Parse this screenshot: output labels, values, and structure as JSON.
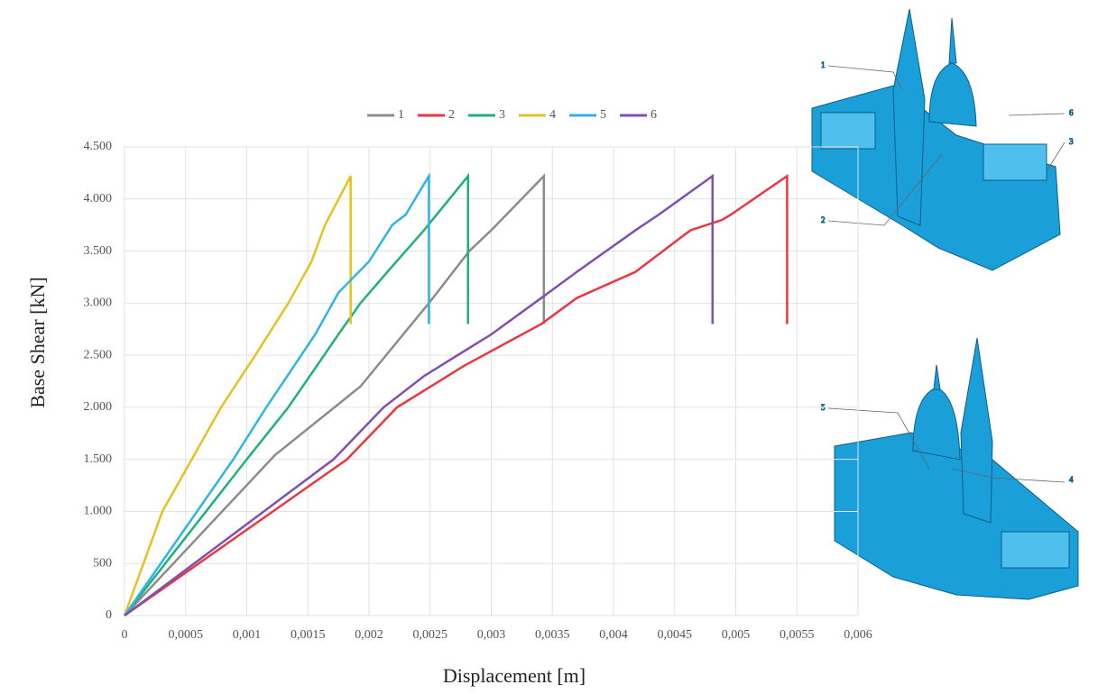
{
  "chart_data": {
    "type": "line",
    "x_label": "Displacement [m]",
    "y_label": "Base Shear [kN]",
    "xlim": [
      0,
      0.006
    ],
    "xticks": [
      0,
      {
        "value": 0.0005,
        "label": "0,0005"
      },
      {
        "value": 0.001,
        "label": "0,001"
      },
      {
        "value": 0.0015,
        "label": "0,0015"
      },
      {
        "value": 0.002,
        "label": "0,002"
      },
      {
        "value": 0.0025,
        "label": "0,0025"
      },
      {
        "value": 0.003,
        "label": "0,003"
      },
      {
        "value": 0.0035,
        "label": "0,0035"
      },
      {
        "value": 0.004,
        "label": "0,004"
      },
      {
        "value": 0.0045,
        "label": "0,0045"
      },
      {
        "value": 0.005,
        "label": "0,005"
      },
      {
        "value": 0.0055,
        "label": "0,0055"
      },
      {
        "value": 0.006,
        "label": "0,006"
      }
    ],
    "ylim": [
      0,
      4500
    ],
    "yticks": [
      0,
      500,
      {
        "value": 1000,
        "label": "1.000"
      },
      {
        "value": 1500,
        "label": "1.500"
      },
      {
        "value": 2000,
        "label": "2.000"
      },
      {
        "value": 2500,
        "label": "2.500"
      },
      {
        "value": 3000,
        "label": "3.000"
      },
      {
        "value": 3500,
        "label": "3.500"
      },
      {
        "value": 4000,
        "label": "4.000"
      },
      {
        "value": 4500,
        "label": "4.500"
      }
    ],
    "grid": true,
    "legend": "top",
    "series": [
      {
        "name": "1",
        "color": "#8c8c8c",
        "x": [
          0,
          0.00123,
          0.00193,
          0.00249,
          0.00282,
          0.003,
          0.00343,
          0.00343
        ],
        "values": [
          0,
          1540,
          2200,
          3000,
          3500,
          3700,
          4220,
          2800
        ]
      },
      {
        "name": "2",
        "color": "#e8373f",
        "x": [
          0,
          0.00182,
          0.00223,
          0.00278,
          0.00341,
          0.0037,
          0.00418,
          0.00463,
          0.00489,
          0.00496,
          0.00542,
          0.00542
        ],
        "values": [
          0,
          1500,
          2000,
          2400,
          2800,
          3050,
          3300,
          3700,
          3800,
          3850,
          4220,
          2800
        ]
      },
      {
        "name": "3",
        "color": "#20b07a",
        "x": [
          0,
          0.001,
          0.00134,
          0.00175,
          0.00193,
          0.00215,
          0.00245,
          0.00281,
          0.00281
        ],
        "values": [
          0,
          1500,
          2000,
          2700,
          3000,
          3300,
          3700,
          4220,
          2800
        ]
      },
      {
        "name": "4",
        "color": "#e8c020",
        "x": [
          0,
          0.00031,
          0.00079,
          0.00107,
          0.00134,
          0.00153,
          0.00164,
          0.00185,
          0.00185
        ],
        "values": [
          0,
          1000,
          2000,
          2500,
          3000,
          3400,
          3750,
          4220,
          2800
        ]
      },
      {
        "name": "5",
        "color": "#2eb4e6",
        "x": [
          0,
          0.00089,
          0.00116,
          0.00156,
          0.00175,
          0.002,
          0.00219,
          0.0023,
          0.00249,
          0.00249
        ],
        "values": [
          0,
          1500,
          2000,
          2700,
          3100,
          3400,
          3750,
          3850,
          4220,
          2800
        ]
      },
      {
        "name": "6",
        "color": "#8050b0",
        "x": [
          0,
          0.00171,
          0.00212,
          0.00245,
          0.003,
          0.00341,
          0.0037,
          0.00418,
          0.00437,
          0.00481,
          0.00481
        ],
        "values": [
          0,
          1500,
          2000,
          2300,
          2700,
          3050,
          3300,
          3700,
          3850,
          4220,
          2800
        ]
      }
    ]
  },
  "figure_labels": {
    "top": [
      "1",
      "6",
      "3",
      "2"
    ],
    "bottom": [
      "5",
      "4"
    ]
  }
}
